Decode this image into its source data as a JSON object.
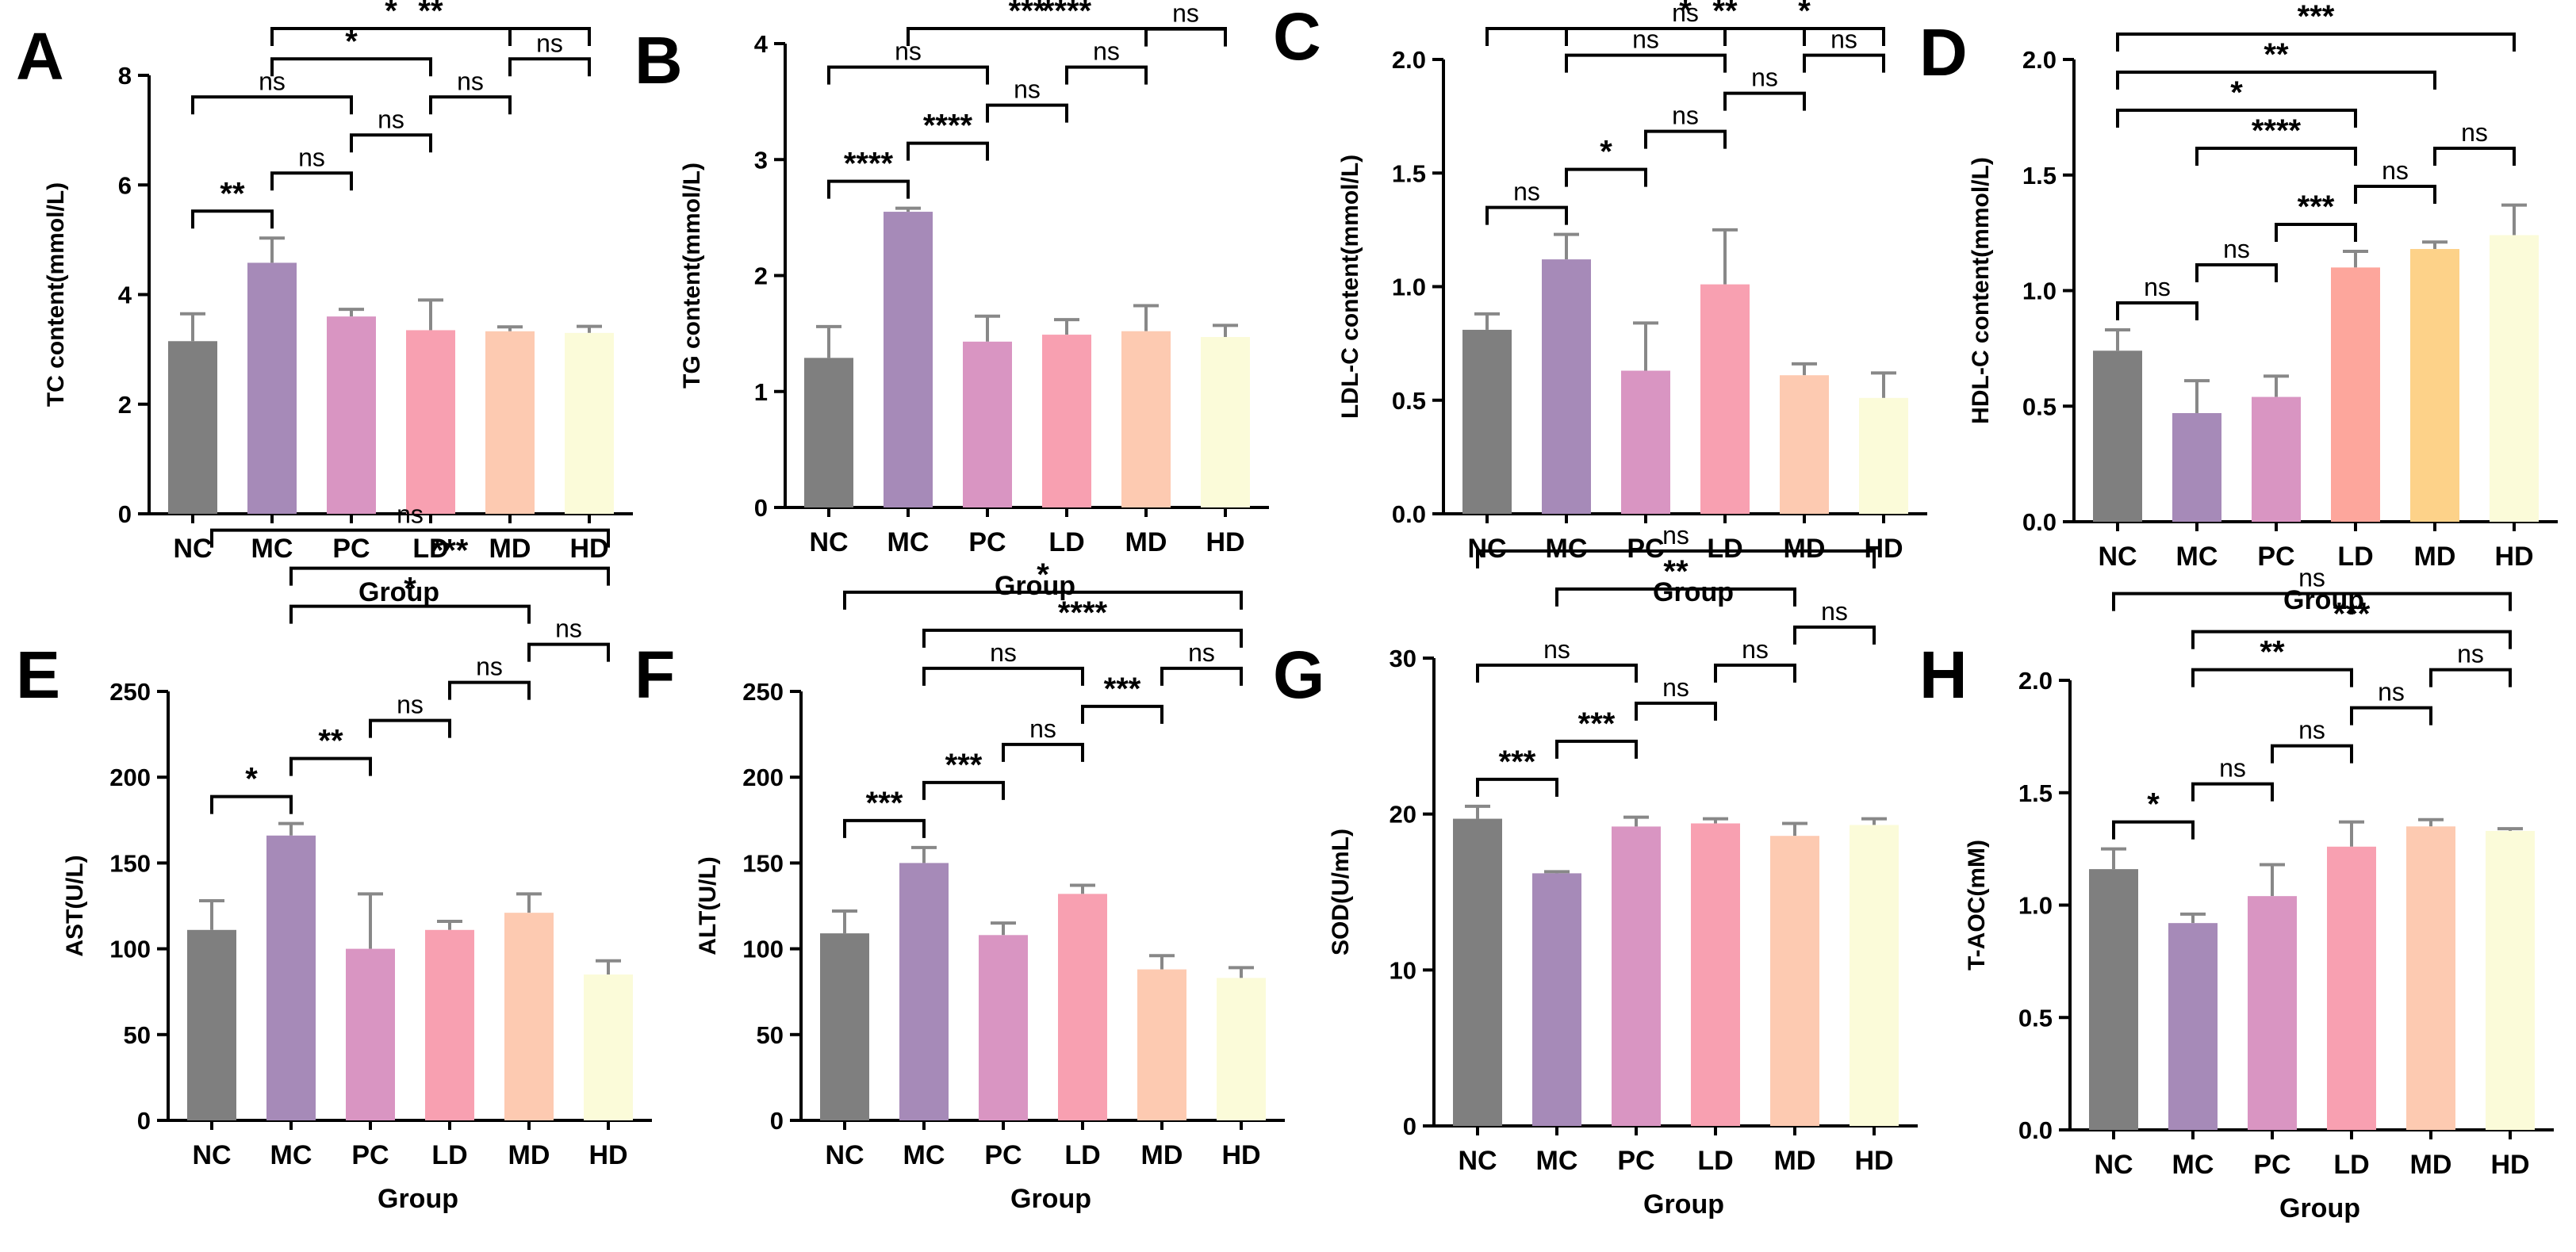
{
  "figure": {
    "groups": [
      "NC",
      "MC",
      "PC",
      "LD",
      "MD",
      "HD"
    ],
    "colors": {
      "NC": "#7f7f7f",
      "MC": "#a68ab8",
      "PC": "#d995c2",
      "LD": "#f8a0b1",
      "LD_alt": "#fda69c",
      "MD": "#fdcab1",
      "MD_alt": "#fdd289",
      "HD": "#fbfbd9"
    }
  },
  "chart_data": [
    {
      "panel": "A",
      "type": "bar",
      "xlabel": "Group",
      "ylabel": "TC content(mmol/L)",
      "categories": [
        "NC",
        "MC",
        "PC",
        "LD",
        "MD",
        "HD"
      ],
      "values": [
        3.15,
        4.58,
        3.6,
        3.35,
        3.33,
        3.3
      ],
      "errors": [
        0.5,
        0.45,
        0.13,
        0.55,
        0.08,
        0.12
      ],
      "ylim": [
        0,
        8
      ],
      "yticks": [
        "0",
        "2",
        "4",
        "6",
        "8"
      ],
      "comparisons": [
        {
          "a": "NC",
          "b": "MC",
          "label": "**"
        },
        {
          "a": "NC",
          "b": "PC",
          "label": "ns"
        },
        {
          "a": "MC",
          "b": "PC",
          "label": "ns"
        },
        {
          "a": "PC",
          "b": "LD",
          "label": "ns"
        },
        {
          "a": "LD",
          "b": "MD",
          "label": "ns"
        },
        {
          "a": "MD",
          "b": "HD",
          "label": "ns"
        },
        {
          "a": "MC",
          "b": "LD",
          "label": "*"
        },
        {
          "a": "MC",
          "b": "MD",
          "label": "*"
        },
        {
          "a": "MC",
          "b": "HD",
          "label": "**"
        }
      ]
    },
    {
      "panel": "B",
      "type": "bar",
      "xlabel": "Group",
      "ylabel": "TG content(mmol/L)",
      "categories": [
        "NC",
        "MC",
        "PC",
        "LD",
        "MD",
        "HD"
      ],
      "values": [
        1.29,
        2.55,
        1.43,
        1.49,
        1.52,
        1.47
      ],
      "errors": [
        0.27,
        0.03,
        0.22,
        0.13,
        0.22,
        0.1
      ],
      "ylim": [
        0,
        4
      ],
      "yticks": [
        "0",
        "1",
        "2",
        "3",
        "4"
      ],
      "comparisons": [
        {
          "a": "NC",
          "b": "MC",
          "label": "****"
        },
        {
          "a": "MC",
          "b": "PC",
          "label": "****"
        },
        {
          "a": "PC",
          "b": "LD",
          "label": "ns"
        },
        {
          "a": "LD",
          "b": "MD",
          "label": "ns"
        },
        {
          "a": "MD",
          "b": "HD",
          "label": "ns"
        },
        {
          "a": "MC",
          "b": "MD",
          "label": "***"
        },
        {
          "a": "NC",
          "b": "PC",
          "label": "ns"
        },
        {
          "a": "MC",
          "b": "HD",
          "label": "****"
        }
      ]
    },
    {
      "panel": "C",
      "type": "bar",
      "xlabel": "Group",
      "ylabel": "LDL-C content(mmol/L)",
      "categories": [
        "NC",
        "MC",
        "PC",
        "LD",
        "MD",
        "HD"
      ],
      "values": [
        0.81,
        1.12,
        0.63,
        1.01,
        0.61,
        0.51
      ],
      "errors": [
        0.07,
        0.11,
        0.21,
        0.24,
        0.05,
        0.11
      ],
      "ylim": [
        0,
        2
      ],
      "yticks": [
        "0.0",
        "0.5",
        "1.0",
        "1.5",
        "2.0"
      ],
      "comparisons": [
        {
          "a": "NC",
          "b": "MC",
          "label": "ns"
        },
        {
          "a": "MC",
          "b": "PC",
          "label": "*"
        },
        {
          "a": "PC",
          "b": "LD",
          "label": "ns"
        },
        {
          "a": "LD",
          "b": "MD",
          "label": "ns"
        },
        {
          "a": "MD",
          "b": "HD",
          "label": "ns"
        },
        {
          "a": "MC",
          "b": "LD",
          "label": "ns"
        },
        {
          "a": "LD",
          "b": "HD",
          "label": "*"
        },
        {
          "a": "MC",
          "b": "MD",
          "label": "*"
        },
        {
          "a": "MC",
          "b": "HD",
          "label": "**"
        },
        {
          "a": "NC",
          "b": "HD",
          "label": "ns"
        }
      ]
    },
    {
      "panel": "D",
      "type": "bar",
      "xlabel": "Group",
      "ylabel": "HDL-C content(mmol/L)",
      "categories": [
        "NC",
        "MC",
        "PC",
        "LD",
        "MD",
        "HD"
      ],
      "values": [
        0.74,
        0.47,
        0.54,
        1.1,
        1.18,
        1.24
      ],
      "errors": [
        0.09,
        0.14,
        0.09,
        0.07,
        0.03,
        0.13
      ],
      "ylim": [
        0,
        2
      ],
      "yticks": [
        "0.0",
        "0.5",
        "1.0",
        "1.5",
        "2.0"
      ],
      "comparisons": [
        {
          "a": "NC",
          "b": "MC",
          "label": "ns"
        },
        {
          "a": "MC",
          "b": "PC",
          "label": "ns"
        },
        {
          "a": "PC",
          "b": "LD",
          "label": "***"
        },
        {
          "a": "LD",
          "b": "MD",
          "label": "ns"
        },
        {
          "a": "MD",
          "b": "HD",
          "label": "ns"
        },
        {
          "a": "MC",
          "b": "LD",
          "label": "****"
        },
        {
          "a": "NC",
          "b": "LD",
          "label": "*"
        },
        {
          "a": "NC",
          "b": "MD",
          "label": "**"
        },
        {
          "a": "NC",
          "b": "HD",
          "label": "***"
        }
      ]
    },
    {
      "panel": "E",
      "type": "bar",
      "xlabel": "Group",
      "ylabel": "AST(U/L)",
      "categories": [
        "NC",
        "MC",
        "PC",
        "LD",
        "MD",
        "HD"
      ],
      "values": [
        111,
        166,
        100,
        111,
        121,
        85
      ],
      "errors": [
        17,
        7,
        32,
        5,
        11,
        8
      ],
      "ylim": [
        0,
        250
      ],
      "yticks": [
        "0",
        "50",
        "100",
        "150",
        "200",
        "250"
      ],
      "comparisons": [
        {
          "a": "NC",
          "b": "MC",
          "label": "*"
        },
        {
          "a": "MC",
          "b": "PC",
          "label": "**"
        },
        {
          "a": "PC",
          "b": "LD",
          "label": "ns"
        },
        {
          "a": "LD",
          "b": "MD",
          "label": "ns"
        },
        {
          "a": "MD",
          "b": "HD",
          "label": "ns"
        },
        {
          "a": "MC",
          "b": "MD",
          "label": "*"
        },
        {
          "a": "MC",
          "b": "HD",
          "label": "***"
        },
        {
          "a": "NC",
          "b": "HD",
          "label": "ns"
        }
      ]
    },
    {
      "panel": "F",
      "type": "bar",
      "xlabel": "Group",
      "ylabel": "ALT(U/L)",
      "categories": [
        "NC",
        "MC",
        "PC",
        "LD",
        "MD",
        "HD"
      ],
      "values": [
        109,
        150,
        108,
        132,
        88,
        83
      ],
      "errors": [
        13,
        9,
        7,
        5,
        8,
        6
      ],
      "ylim": [
        0,
        250
      ],
      "yticks": [
        "0",
        "50",
        "100",
        "150",
        "200",
        "250"
      ],
      "comparisons": [
        {
          "a": "NC",
          "b": "MC",
          "label": "***"
        },
        {
          "a": "MC",
          "b": "PC",
          "label": "***"
        },
        {
          "a": "PC",
          "b": "LD",
          "label": "ns"
        },
        {
          "a": "LD",
          "b": "MD",
          "label": "***"
        },
        {
          "a": "MD",
          "b": "HD",
          "label": "ns"
        },
        {
          "a": "MC",
          "b": "LD",
          "label": "ns"
        },
        {
          "a": "MC",
          "b": "HD",
          "label": "****"
        },
        {
          "a": "NC",
          "b": "HD",
          "label": "*"
        }
      ]
    },
    {
      "panel": "G",
      "type": "bar",
      "xlabel": "Group",
      "ylabel": "SOD(U/mL)",
      "categories": [
        "NC",
        "MC",
        "PC",
        "LD",
        "MD",
        "HD"
      ],
      "values": [
        19.7,
        16.2,
        19.2,
        19.4,
        18.6,
        19.3
      ],
      "errors": [
        0.8,
        0.1,
        0.6,
        0.3,
        0.8,
        0.4
      ],
      "ylim": [
        0,
        30
      ],
      "yticks": [
        "0",
        "10",
        "20",
        "30"
      ],
      "comparisons": [
        {
          "a": "NC",
          "b": "MC",
          "label": "***"
        },
        {
          "a": "MC",
          "b": "PC",
          "label": "***"
        },
        {
          "a": "PC",
          "b": "LD",
          "label": "ns"
        },
        {
          "a": "LD",
          "b": "MD",
          "label": "ns"
        },
        {
          "a": "MD",
          "b": "HD",
          "label": "ns"
        },
        {
          "a": "NC",
          "b": "PC",
          "label": "ns"
        },
        {
          "a": "MC",
          "b": "MD",
          "label": "**"
        },
        {
          "a": "NC",
          "b": "HD",
          "label": "ns"
        }
      ]
    },
    {
      "panel": "H",
      "type": "bar",
      "xlabel": "Group",
      "ylabel": "T-AOC(mM)",
      "categories": [
        "NC",
        "MC",
        "PC",
        "LD",
        "MD",
        "HD"
      ],
      "values": [
        1.16,
        0.92,
        1.04,
        1.26,
        1.35,
        1.33
      ],
      "errors": [
        0.09,
        0.04,
        0.14,
        0.11,
        0.03,
        0.01
      ],
      "ylim": [
        0,
        2
      ],
      "yticks": [
        "0.0",
        "0.5",
        "1.0",
        "1.5",
        "2.0"
      ],
      "comparisons": [
        {
          "a": "NC",
          "b": "MC",
          "label": "*"
        },
        {
          "a": "MC",
          "b": "PC",
          "label": "ns"
        },
        {
          "a": "PC",
          "b": "LD",
          "label": "ns"
        },
        {
          "a": "LD",
          "b": "MD",
          "label": "ns"
        },
        {
          "a": "MD",
          "b": "HD",
          "label": "ns"
        },
        {
          "a": "MC",
          "b": "LD",
          "label": "**"
        },
        {
          "a": "MC",
          "b": "HD",
          "label": "***"
        },
        {
          "a": "NC",
          "b": "HD",
          "label": "ns"
        }
      ]
    }
  ]
}
